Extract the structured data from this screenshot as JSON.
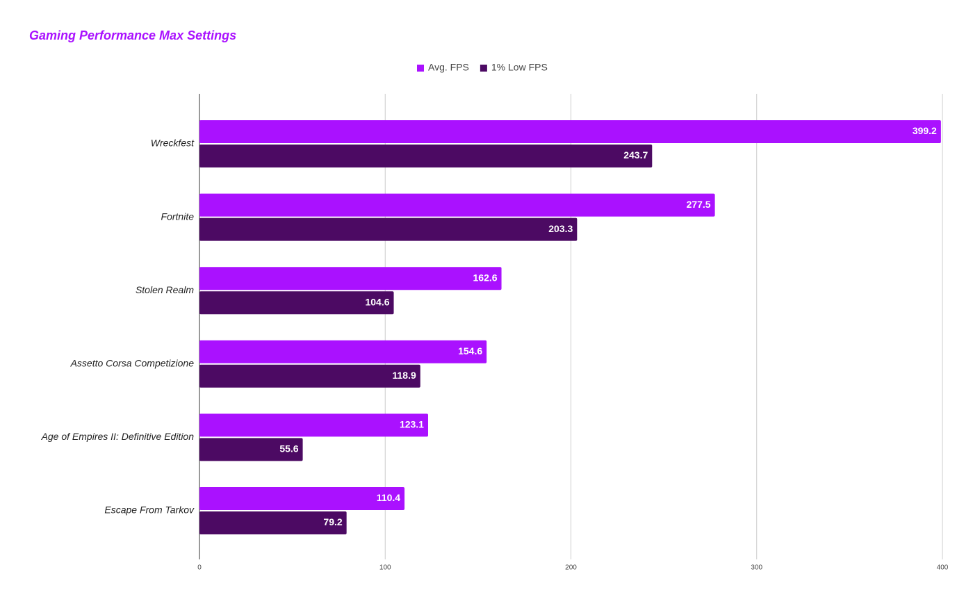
{
  "chart_data": {
    "type": "bar",
    "orientation": "horizontal",
    "title": "Gaming Performance Max Settings",
    "categories": [
      "Wreckfest",
      "Fortnite",
      "Stolen Realm",
      "Assetto Corsa Competizione",
      "Age of Empires II: Definitive Edition",
      "Escape From Tarkov"
    ],
    "series": [
      {
        "name": "Avg. FPS",
        "color": "#aa11ff",
        "values": [
          399.2,
          277.5,
          162.6,
          154.6,
          123.1,
          110.4
        ]
      },
      {
        "name": "1% Low FPS",
        "color": "#4c0a63",
        "values": [
          243.7,
          203.3,
          104.6,
          118.9,
          55.6,
          79.2
        ]
      }
    ],
    "xlim": [
      0,
      400
    ],
    "xticks": [
      0,
      100,
      200,
      300,
      400
    ],
    "grid": true,
    "legend": "top"
  }
}
